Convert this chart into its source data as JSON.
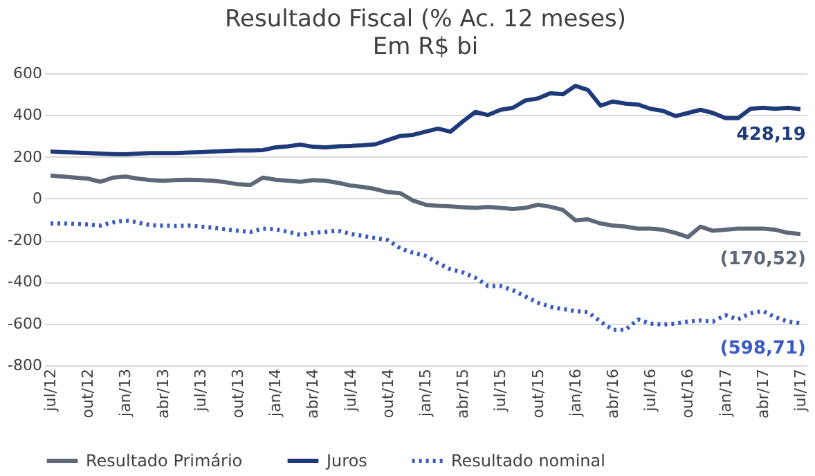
{
  "chart_data": {
    "type": "line",
    "title": "Resultado Fiscal (% Ac. 12 meses)",
    "subtitle": "Em R$ bi",
    "categories": [
      "jul/12",
      null,
      null,
      "out/12",
      null,
      null,
      "jan/13",
      null,
      null,
      "abr/13",
      null,
      null,
      "jul/13",
      null,
      null,
      "out/13",
      null,
      null,
      "jan/14",
      null,
      null,
      "abr/14",
      null,
      null,
      "jul/14",
      null,
      null,
      "out/14",
      null,
      null,
      "jan/15",
      null,
      null,
      "abr/15",
      null,
      null,
      "jul/15",
      null,
      null,
      "out/15",
      null,
      null,
      "jan/16",
      null,
      null,
      "abr/16",
      null,
      null,
      "jul/16",
      null,
      null,
      "out/16",
      null,
      null,
      "jan/17",
      null,
      null,
      "abr/17",
      null,
      null,
      "jul/17"
    ],
    "series": [
      {
        "name": "Resultado Primário",
        "color": "#5d6878",
        "line_style": "solid",
        "values": [
          110,
          105,
          100,
          95,
          80,
          100,
          105,
          95,
          88,
          85,
          88,
          90,
          88,
          85,
          78,
          68,
          65,
          100,
          90,
          85,
          80,
          88,
          85,
          75,
          62,
          55,
          45,
          30,
          25,
          -10,
          -30,
          -35,
          -38,
          -42,
          -45,
          -40,
          -45,
          -50,
          -45,
          -30,
          -40,
          -55,
          -105,
          -100,
          -120,
          -130,
          -135,
          -145,
          -145,
          -150,
          -165,
          -185,
          -135,
          -155,
          -150,
          -145,
          -145,
          -145,
          -150,
          -165,
          -170.52
        ],
        "value_labels": [
          null,
          null,
          null,
          null,
          null,
          null,
          null,
          null,
          null,
          null,
          null,
          null,
          null,
          null,
          null,
          null,
          null,
          null,
          null,
          null,
          null,
          null,
          null,
          null,
          null,
          null,
          null,
          null,
          null,
          null,
          null,
          null,
          null,
          null,
          null,
          null,
          null,
          null,
          null,
          null,
          null,
          null,
          null,
          null,
          null,
          null,
          null,
          null,
          null,
          null,
          null,
          null,
          null,
          null,
          null,
          null,
          null,
          null,
          null,
          null,
          "(170,52)"
        ]
      },
      {
        "name": "Juros",
        "color": "#1f3a7a",
        "line_style": "solid",
        "values": [
          225,
          222,
          220,
          218,
          215,
          213,
          212,
          215,
          218,
          218,
          218,
          220,
          222,
          225,
          228,
          230,
          230,
          232,
          245,
          250,
          258,
          248,
          245,
          250,
          252,
          255,
          260,
          280,
          300,
          305,
          320,
          335,
          320,
          370,
          415,
          400,
          425,
          435,
          470,
          480,
          505,
          500,
          540,
          520,
          445,
          465,
          455,
          450,
          430,
          420,
          395,
          410,
          425,
          410,
          385,
          385,
          430,
          435,
          430,
          435,
          428.19
        ],
        "value_labels": [
          null,
          null,
          null,
          null,
          null,
          null,
          null,
          null,
          null,
          null,
          null,
          null,
          null,
          null,
          null,
          null,
          null,
          null,
          null,
          null,
          null,
          null,
          null,
          null,
          null,
          null,
          null,
          null,
          null,
          null,
          null,
          null,
          null,
          null,
          null,
          null,
          null,
          null,
          null,
          null,
          null,
          null,
          null,
          null,
          null,
          null,
          null,
          null,
          null,
          null,
          null,
          null,
          null,
          null,
          null,
          null,
          null,
          null,
          null,
          null,
          "428,19"
        ]
      },
      {
        "name": "Resultado nominal",
        "color": "#3a5cc0",
        "line_style": "dotted",
        "values": [
          -120,
          -120,
          -122,
          -125,
          -130,
          -115,
          -105,
          -115,
          -128,
          -130,
          -132,
          -130,
          -135,
          -140,
          -148,
          -155,
          -160,
          -145,
          -148,
          -160,
          -175,
          -165,
          -160,
          -155,
          -170,
          -180,
          -190,
          -200,
          -240,
          -260,
          -275,
          -310,
          -340,
          -355,
          -380,
          -420,
          -420,
          -440,
          -470,
          -500,
          -520,
          -530,
          -540,
          -545,
          -590,
          -630,
          -630,
          -580,
          -600,
          -605,
          -600,
          -590,
          -585,
          -590,
          -560,
          -580,
          -550,
          -540,
          -570,
          -590,
          -598.71
        ],
        "value_labels": [
          null,
          null,
          null,
          null,
          null,
          null,
          null,
          null,
          null,
          null,
          null,
          null,
          null,
          null,
          null,
          null,
          null,
          null,
          null,
          null,
          null,
          null,
          null,
          null,
          null,
          null,
          null,
          null,
          null,
          null,
          null,
          null,
          null,
          null,
          null,
          null,
          null,
          null,
          null,
          null,
          null,
          null,
          null,
          null,
          null,
          null,
          null,
          null,
          null,
          null,
          null,
          null,
          null,
          null,
          null,
          null,
          null,
          null,
          null,
          null,
          "(598,71)"
        ]
      }
    ],
    "ylim": [
      -800,
      600
    ],
    "yticks": [
      -800,
      -600,
      -400,
      -200,
      0,
      200,
      400,
      600
    ],
    "grid": "y",
    "legend": "bottom"
  }
}
